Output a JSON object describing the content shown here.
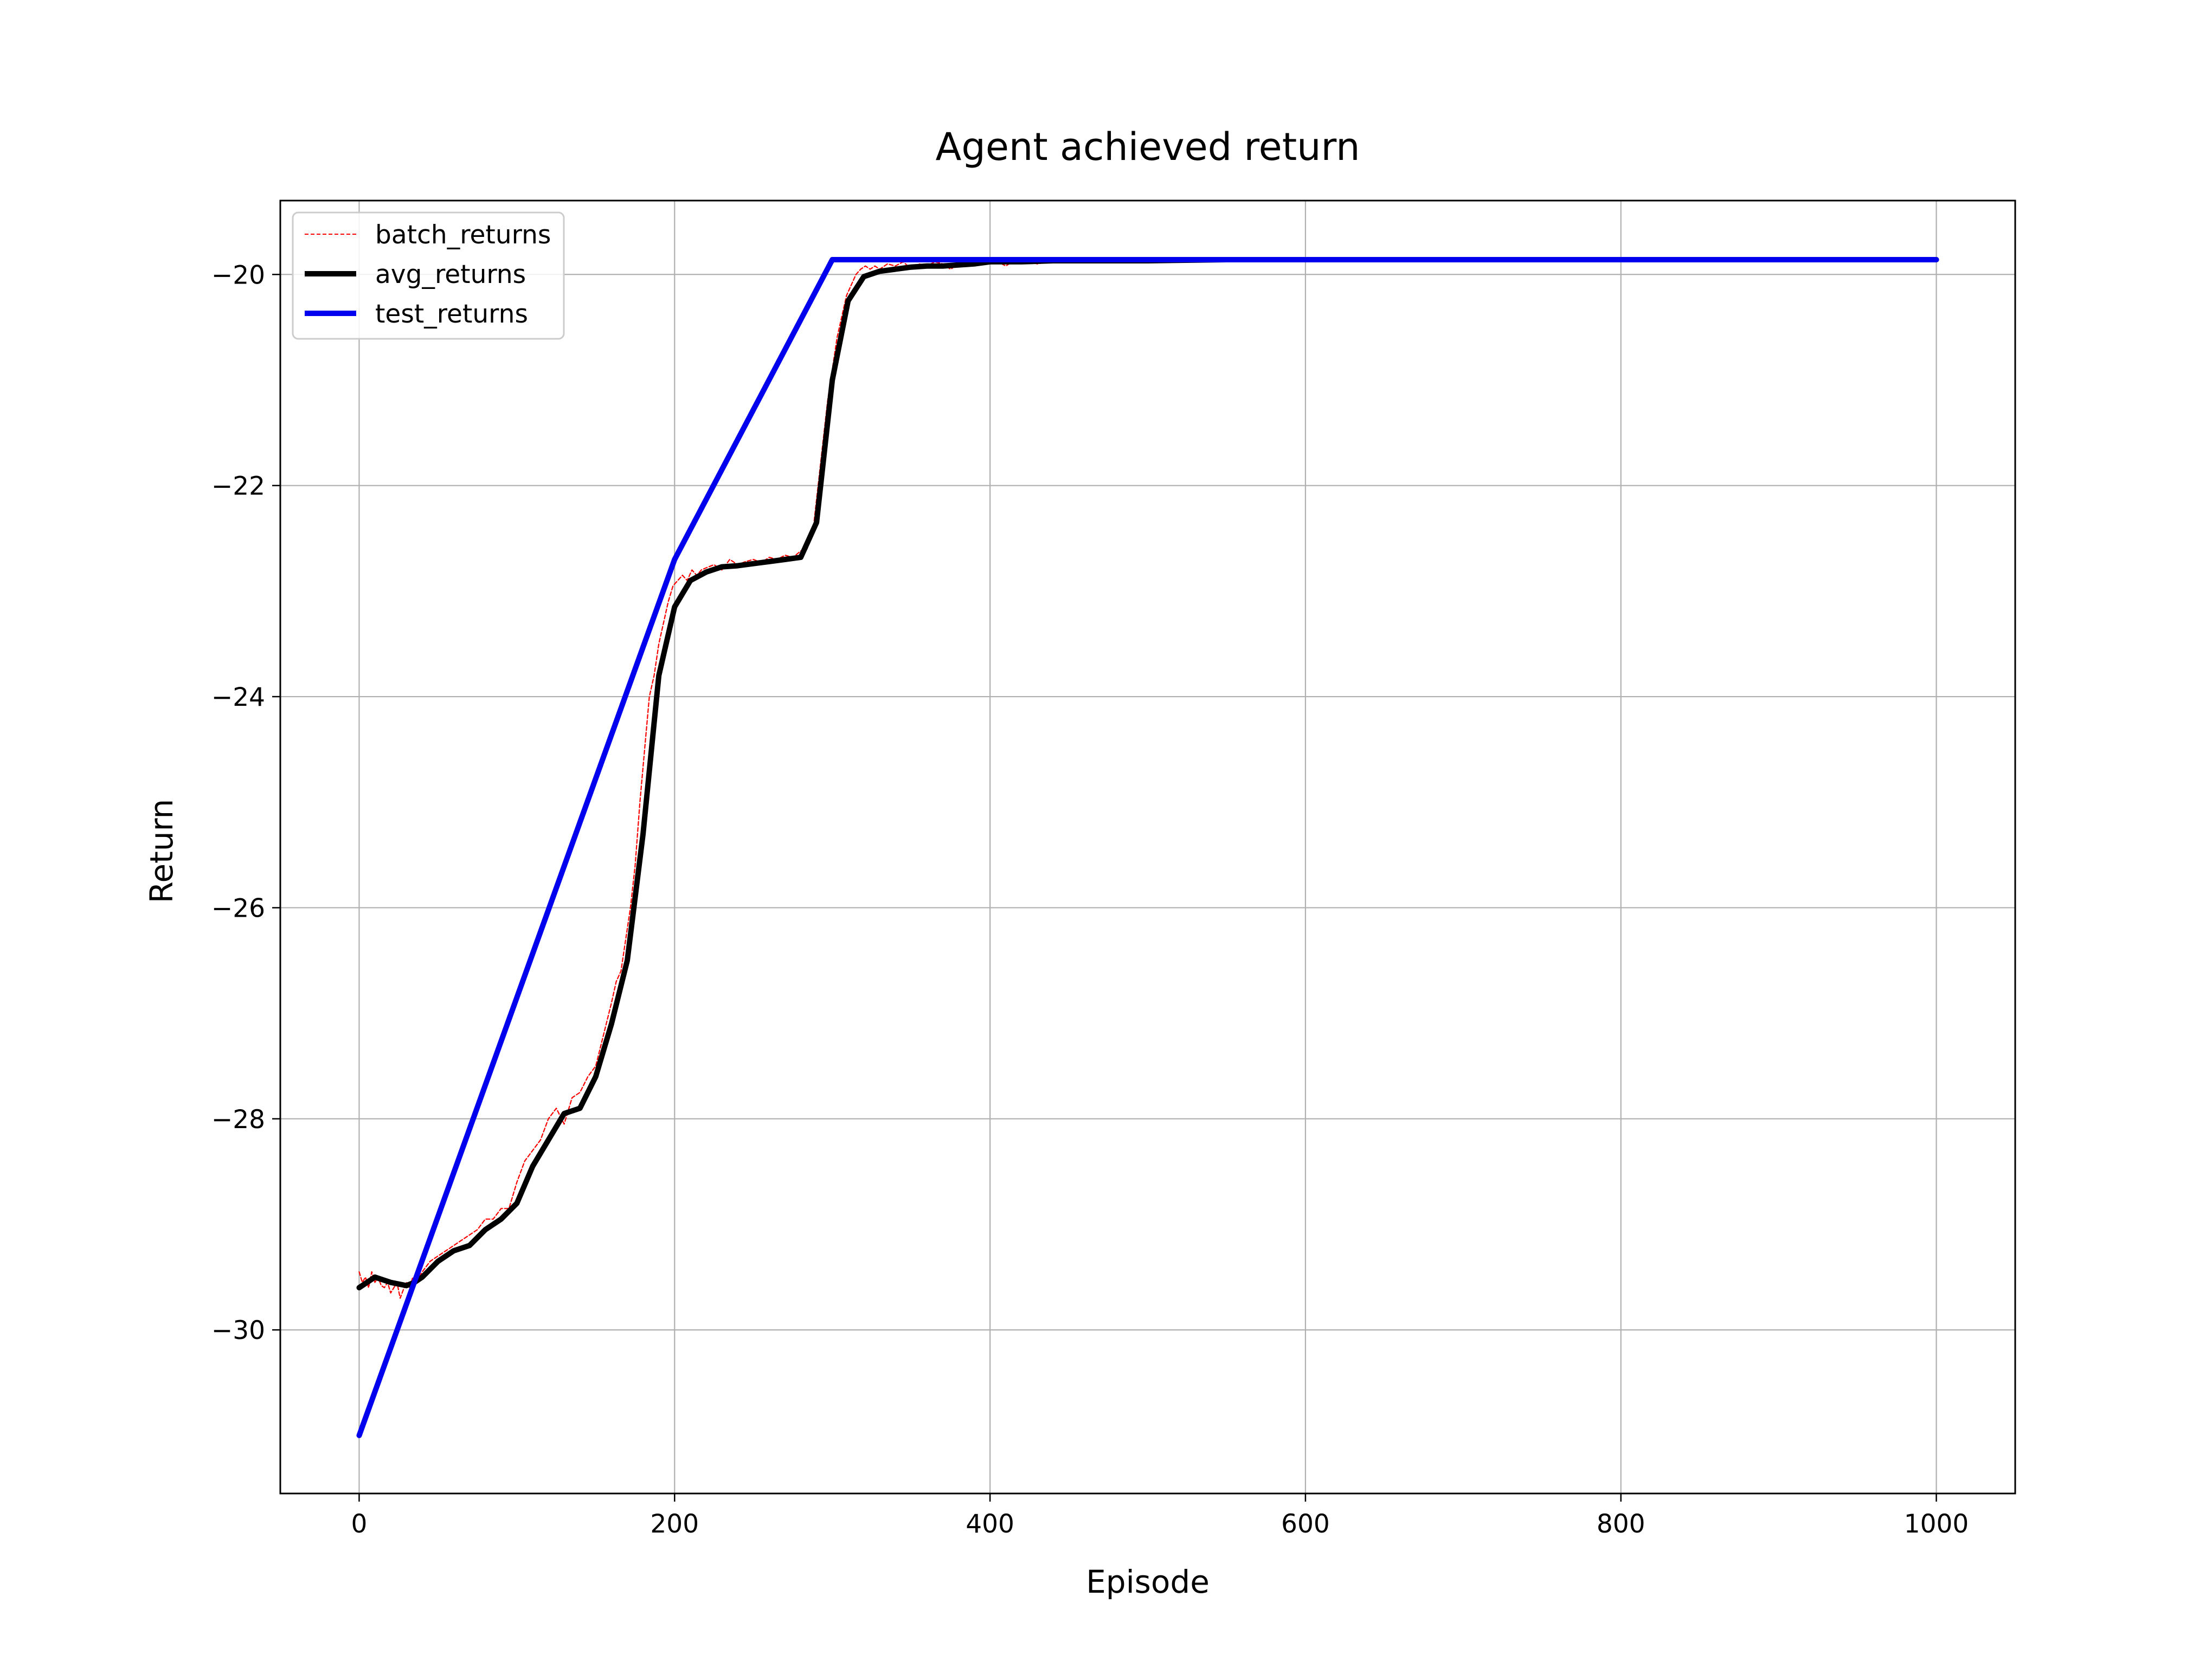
{
  "chart_data": {
    "type": "line",
    "title": "Agent achieved return",
    "xlabel": "Episode",
    "ylabel": "Return",
    "xlim": [
      -50,
      1050
    ],
    "ylim": [
      -31.55,
      -19.3
    ],
    "xticks": [
      0,
      200,
      400,
      600,
      800,
      1000
    ],
    "xtick_labels": [
      "0",
      "200",
      "400",
      "600",
      "800",
      "1000"
    ],
    "yticks": [
      -30,
      -28,
      -26,
      -24,
      -22,
      -20
    ],
    "ytick_labels": [
      "−30",
      "−28",
      "−26",
      "−24",
      "−22",
      "−20"
    ],
    "grid": true,
    "legend_position": "top-left",
    "series": [
      {
        "name": "batch_returns",
        "color": "#ff0000",
        "style": "dashed-thin",
        "x": [
          0,
          2,
          4,
          6,
          8,
          10,
          12,
          14,
          16,
          18,
          20,
          22,
          24,
          26,
          28,
          30,
          32,
          34,
          36,
          38,
          40,
          45,
          50,
          55,
          60,
          65,
          70,
          75,
          80,
          85,
          90,
          95,
          100,
          105,
          110,
          115,
          120,
          125,
          130,
          135,
          140,
          145,
          150,
          155,
          160,
          163,
          166,
          169,
          172,
          175,
          178,
          181,
          184,
          187,
          190,
          193,
          196,
          199,
          202,
          205,
          208,
          211,
          214,
          217,
          220,
          225,
          230,
          235,
          240,
          245,
          250,
          255,
          260,
          265,
          270,
          275,
          280,
          284,
          288,
          291,
          294,
          297,
          300,
          303,
          306,
          309,
          312,
          315,
          318,
          321,
          324,
          327,
          330,
          335,
          340,
          345,
          350,
          355,
          360,
          365,
          370,
          375,
          380,
          385,
          390,
          395,
          400,
          405,
          410,
          415,
          420,
          425,
          430,
          440,
          450,
          460,
          470,
          480,
          490,
          500,
          520,
          540,
          560,
          580,
          600,
          620,
          640,
          660,
          680,
          700,
          720,
          740,
          760,
          780,
          800,
          820,
          840,
          860,
          880,
          900,
          920,
          940,
          960,
          980,
          1000
        ],
        "y": [
          -29.45,
          -29.55,
          -29.5,
          -29.6,
          -29.45,
          -29.55,
          -29.5,
          -29.58,
          -29.6,
          -29.55,
          -29.65,
          -29.6,
          -29.55,
          -29.7,
          -29.62,
          -29.55,
          -29.6,
          -29.5,
          -29.55,
          -29.5,
          -29.45,
          -29.35,
          -29.3,
          -29.25,
          -29.2,
          -29.15,
          -29.1,
          -29.05,
          -28.95,
          -28.95,
          -28.85,
          -28.85,
          -28.6,
          -28.4,
          -28.3,
          -28.2,
          -28.0,
          -27.9,
          -28.05,
          -27.8,
          -27.75,
          -27.6,
          -27.5,
          -27.2,
          -26.9,
          -26.7,
          -26.6,
          -26.3,
          -26.0,
          -25.6,
          -25.0,
          -24.5,
          -24.0,
          -23.8,
          -23.5,
          -23.3,
          -23.1,
          -22.95,
          -22.9,
          -22.85,
          -22.9,
          -22.8,
          -22.85,
          -22.8,
          -22.78,
          -22.75,
          -22.8,
          -22.7,
          -22.75,
          -22.72,
          -22.7,
          -22.73,
          -22.68,
          -22.7,
          -22.66,
          -22.68,
          -22.62,
          -22.6,
          -22.4,
          -22.0,
          -21.6,
          -21.2,
          -20.9,
          -20.6,
          -20.4,
          -20.2,
          -20.1,
          -20.0,
          -19.95,
          -19.92,
          -19.95,
          -19.92,
          -19.95,
          -19.9,
          -19.92,
          -19.88,
          -19.95,
          -19.9,
          -19.92,
          -19.88,
          -19.9,
          -19.95,
          -19.9,
          -19.88,
          -19.9,
          -19.87,
          -19.9,
          -19.88,
          -19.92,
          -19.87,
          -19.9,
          -19.88,
          -19.9,
          -19.87,
          -19.88,
          -19.87,
          -19.88,
          -19.87,
          -19.88,
          -19.86,
          -19.88,
          -19.86,
          -19.88,
          -19.87,
          -19.86,
          -19.87,
          -19.86,
          -19.87,
          -19.86,
          -19.85,
          -19.86,
          -19.85,
          -19.87,
          -19.86,
          -19.85,
          -19.86,
          -19.85,
          -19.86,
          -19.85,
          -19.86,
          -19.85,
          -19.86,
          -19.85,
          -19.86,
          -19.85
        ]
      },
      {
        "name": "avg_returns",
        "color": "#000000",
        "style": "solid-thick",
        "x": [
          0,
          10,
          20,
          30,
          35,
          40,
          50,
          60,
          70,
          80,
          90,
          100,
          110,
          120,
          130,
          140,
          150,
          160,
          170,
          180,
          190,
          200,
          210,
          220,
          230,
          240,
          250,
          260,
          270,
          280,
          290,
          300,
          310,
          320,
          330,
          340,
          350,
          360,
          370,
          380,
          390,
          400,
          420,
          440,
          460,
          480,
          500,
          550,
          600,
          650,
          700,
          750,
          800,
          850,
          900,
          950,
          1000
        ],
        "y": [
          -29.6,
          -29.5,
          -29.55,
          -29.58,
          -29.55,
          -29.5,
          -29.35,
          -29.25,
          -29.2,
          -29.05,
          -28.95,
          -28.8,
          -28.45,
          -28.2,
          -27.95,
          -27.9,
          -27.6,
          -27.1,
          -26.5,
          -25.3,
          -23.8,
          -23.15,
          -22.9,
          -22.82,
          -22.77,
          -22.76,
          -22.74,
          -22.72,
          -22.7,
          -22.68,
          -22.35,
          -21.0,
          -20.25,
          -20.02,
          -19.97,
          -19.95,
          -19.93,
          -19.92,
          -19.92,
          -19.91,
          -19.9,
          -19.88,
          -19.88,
          -19.87,
          -19.87,
          -19.87,
          -19.87,
          -19.86,
          -19.86,
          -19.86,
          -19.86,
          -19.86,
          -19.86,
          -19.86,
          -19.86,
          -19.86,
          -19.86
        ]
      },
      {
        "name": "test_returns",
        "color": "#0000ee",
        "style": "solid-thick",
        "x": [
          0,
          200,
          300,
          1000
        ],
        "y": [
          -31.0,
          -22.7,
          -19.86,
          -19.86
        ]
      }
    ]
  }
}
